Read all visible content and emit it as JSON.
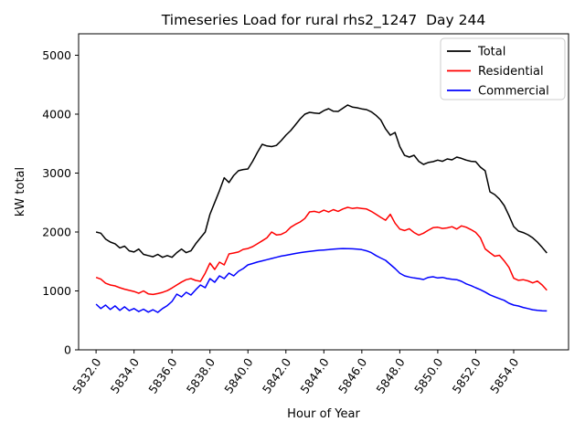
{
  "figure": {
    "title": "Timeseries Load for rural rhs2_1247  Day 244"
  },
  "chart_data": {
    "type": "line",
    "title": "Timeseries Load for rural rhs2_1247  Day 244",
    "xlabel": "Hour of Year",
    "ylabel": "kW total",
    "grid": false,
    "legend_position": "upper right",
    "x_start": 5832.0,
    "x_step": 0.25,
    "points_per_series": 96,
    "xlim": [
      5831.08,
      5856.89
    ],
    "ylim": [
      0,
      5364
    ],
    "xticks": [
      5832,
      5834,
      5836,
      5838,
      5840,
      5842,
      5844,
      5846,
      5848,
      5850,
      5852,
      5854
    ],
    "xtick_labels": [
      "5832.0",
      "5834.0",
      "5836.0",
      "5838.0",
      "5840.0",
      "5842.0",
      "5844.0",
      "5846.0",
      "5848.0",
      "5850.0",
      "5852.0",
      "5854.0"
    ],
    "yticks": [
      0,
      1000,
      2000,
      3000,
      4000,
      5000
    ],
    "ytick_labels": [
      "0",
      "1000",
      "2000",
      "3000",
      "4000",
      "5000"
    ],
    "series": [
      {
        "name": "Total",
        "color": "#000000",
        "values": [
          2000,
          1980,
          1880,
          1830,
          1800,
          1730,
          1760,
          1680,
          1660,
          1710,
          1620,
          1600,
          1580,
          1620,
          1570,
          1600,
          1570,
          1650,
          1710,
          1650,
          1680,
          1800,
          1900,
          2000,
          2300,
          2500,
          2700,
          2920,
          2840,
          2960,
          3040,
          3060,
          3070,
          3200,
          3350,
          3488,
          3460,
          3450,
          3470,
          3550,
          3643,
          3720,
          3820,
          3920,
          4000,
          4031,
          4020,
          4010,
          4060,
          4093,
          4050,
          4047,
          4100,
          4155,
          4120,
          4109,
          4090,
          4078,
          4040,
          3980,
          3900,
          3750,
          3643,
          3690,
          3450,
          3300,
          3271,
          3302,
          3200,
          3147,
          3180,
          3194,
          3220,
          3200,
          3240,
          3225,
          3271,
          3250,
          3220,
          3200,
          3194,
          3100,
          3039,
          2682,
          2636,
          2560,
          2450,
          2280,
          2093,
          2016,
          1990,
          1953,
          1900,
          1829,
          1740,
          1643
        ]
      },
      {
        "name": "Residential",
        "color": "#ff0000",
        "values": [
          1230,
          1200,
          1130,
          1100,
          1085,
          1054,
          1030,
          1010,
          990,
          960,
          1000,
          950,
          940,
          955,
          975,
          1005,
          1050,
          1100,
          1150,
          1190,
          1209,
          1178,
          1163,
          1300,
          1473,
          1364,
          1488,
          1442,
          1628,
          1643,
          1660,
          1705,
          1720,
          1752,
          1800,
          1850,
          1900,
          2000,
          1950,
          1960,
          2000,
          2080,
          2130,
          2170,
          2230,
          2341,
          2350,
          2330,
          2370,
          2340,
          2380,
          2350,
          2390,
          2419,
          2400,
          2410,
          2400,
          2390,
          2350,
          2300,
          2248,
          2200,
          2300,
          2150,
          2050,
          2025,
          2056,
          1990,
          1947,
          1980,
          2030,
          2072,
          2080,
          2060,
          2070,
          2090,
          2050,
          2103,
          2080,
          2040,
          1994,
          1900,
          1713,
          1650,
          1589,
          1604,
          1510,
          1400,
          1215,
          1180,
          1190,
          1170,
          1137,
          1168,
          1100,
          1012
        ]
      },
      {
        "name": "Commercial",
        "color": "#0000ff",
        "values": [
          775,
          700,
          760,
          685,
          745,
          670,
          730,
          665,
          700,
          650,
          690,
          640,
          680,
          635,
          700,
          750,
          821,
          945,
          899,
          977,
          930,
          1020,
          1100,
          1054,
          1209,
          1147,
          1256,
          1209,
          1302,
          1256,
          1333,
          1380,
          1442,
          1465,
          1490,
          1510,
          1530,
          1550,
          1570,
          1590,
          1605,
          1620,
          1635,
          1650,
          1660,
          1670,
          1680,
          1690,
          1695,
          1700,
          1710,
          1715,
          1720,
          1718,
          1714,
          1710,
          1700,
          1680,
          1650,
          1600,
          1558,
          1519,
          1450,
          1380,
          1300,
          1256,
          1235,
          1220,
          1210,
          1194,
          1230,
          1240,
          1220,
          1230,
          1210,
          1199,
          1190,
          1163,
          1120,
          1090,
          1054,
          1020,
          980,
          934,
          900,
          870,
          840,
          791,
          760,
          744,
          720,
          700,
          680,
          670,
          663,
          660
        ]
      }
    ]
  }
}
